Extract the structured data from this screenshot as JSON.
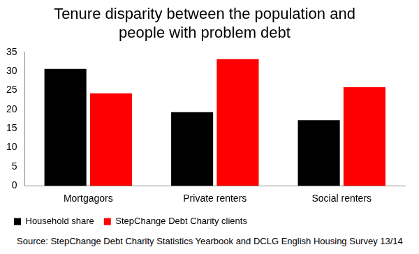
{
  "chart_data": {
    "type": "bar",
    "title": [
      "Tenure disparity between the population and",
      "people with problem debt"
    ],
    "categories": [
      "Mortgagors",
      "Private renters",
      "Social renters"
    ],
    "series": [
      {
        "name": "Household share",
        "color": "#000000",
        "values": [
          30.6,
          19.3,
          17.2
        ]
      },
      {
        "name": "StepChange Debt Charity clients",
        "color": "#ff0000",
        "values": [
          24.2,
          33.2,
          25.8
        ]
      }
    ],
    "ylim": [
      0,
      35
    ],
    "yticks": [
      0,
      5,
      10,
      15,
      20,
      25,
      30,
      35
    ],
    "grid": false,
    "legend": "bottom",
    "source": "Source: StepChange Debt Charity Statistics Yearbook and DCLG English Housing Survey 13/14"
  }
}
